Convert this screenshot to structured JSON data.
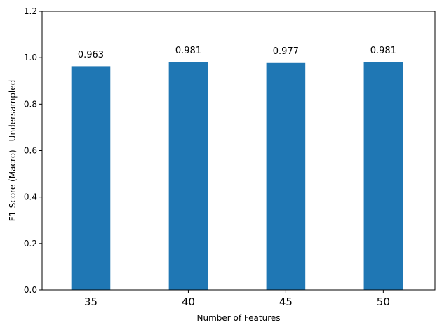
{
  "chart_data": {
    "type": "bar",
    "categories": [
      "35",
      "40",
      "45",
      "50"
    ],
    "values": [
      0.963,
      0.981,
      0.977,
      0.981
    ],
    "data_labels": [
      "0.963",
      "0.981",
      "0.977",
      "0.981"
    ],
    "title": "",
    "xlabel": "Number of Features",
    "ylabel": "F1-Score (Macro) - Undersampled",
    "ylim": [
      0,
      1.2
    ],
    "yticks": [
      0.0,
      0.2,
      0.4,
      0.6,
      0.8,
      1.0,
      1.2
    ],
    "ytick_labels": [
      "0.0",
      "0.2",
      "0.4",
      "0.6",
      "0.8",
      "1.0",
      "1.2"
    ],
    "grid": false,
    "legend": "none",
    "bar_color": "#1f77b4"
  }
}
